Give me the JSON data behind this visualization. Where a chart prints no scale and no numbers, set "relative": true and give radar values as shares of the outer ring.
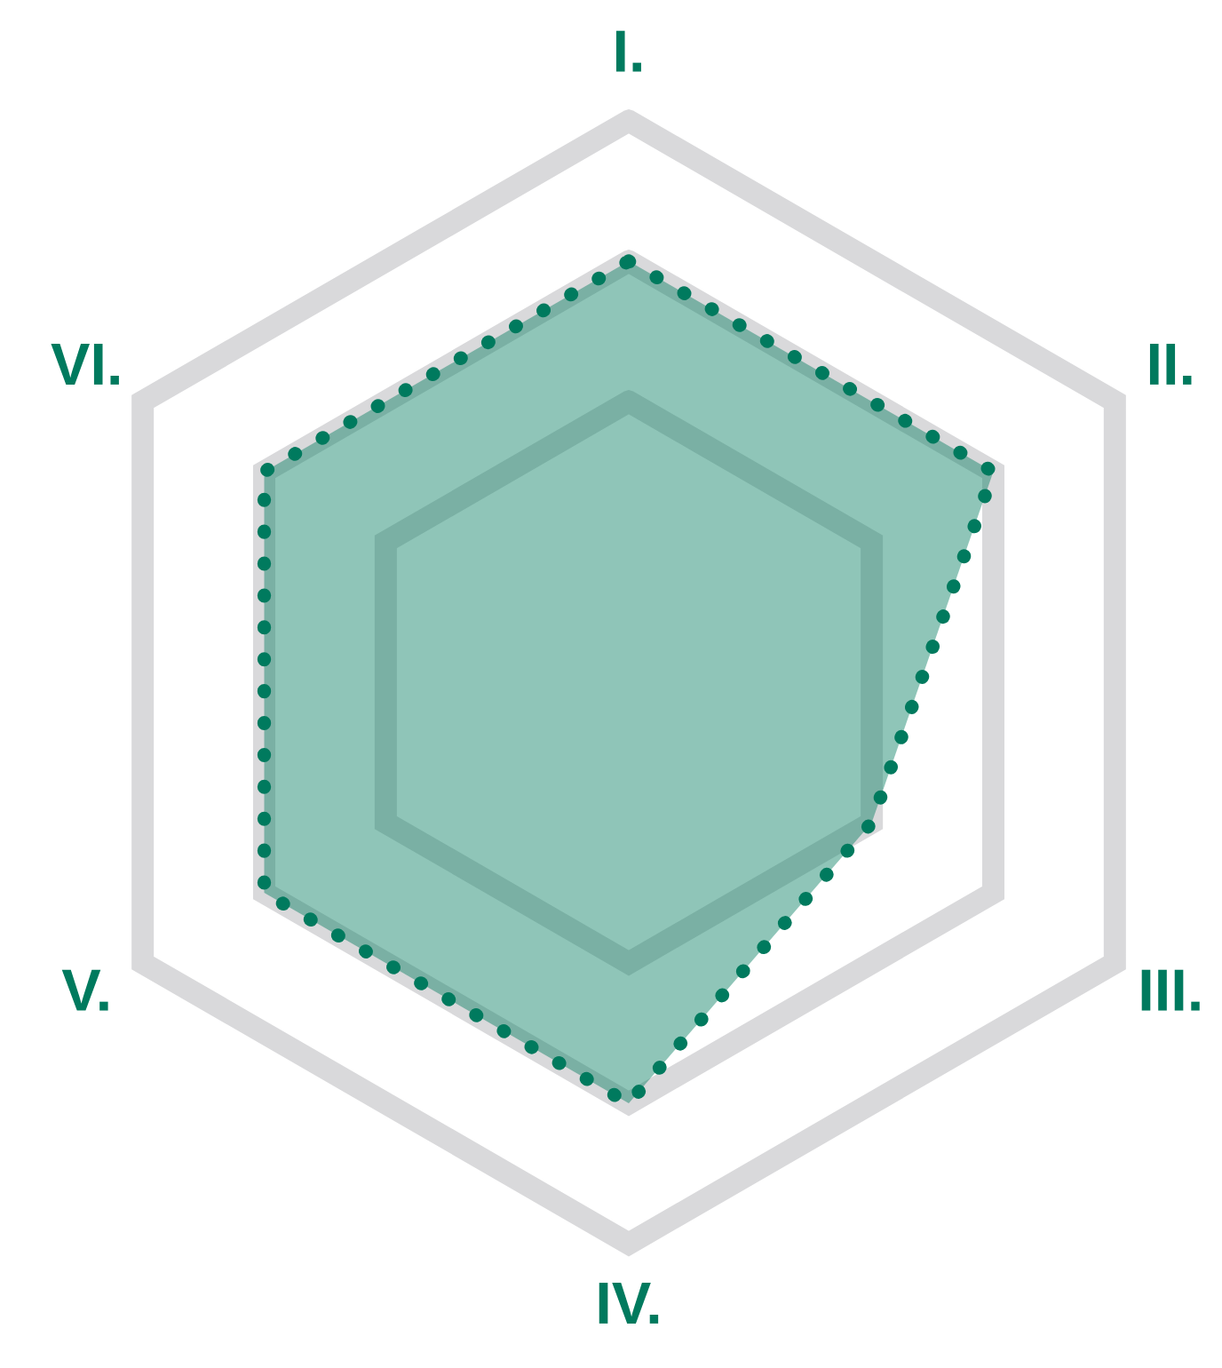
{
  "chart_data": {
    "type": "radar",
    "relative": true,
    "categories": [
      "I.",
      "II.",
      "III.",
      "IV.",
      "V.",
      "VI."
    ],
    "grid": true,
    "line_style": "dotted",
    "series": [
      {
        "color": "#007a5e",
        "values": [
          0.75,
          0.75,
          0.5,
          0.75,
          0.75,
          0.75
        ]
      }
    ]
  }
}
